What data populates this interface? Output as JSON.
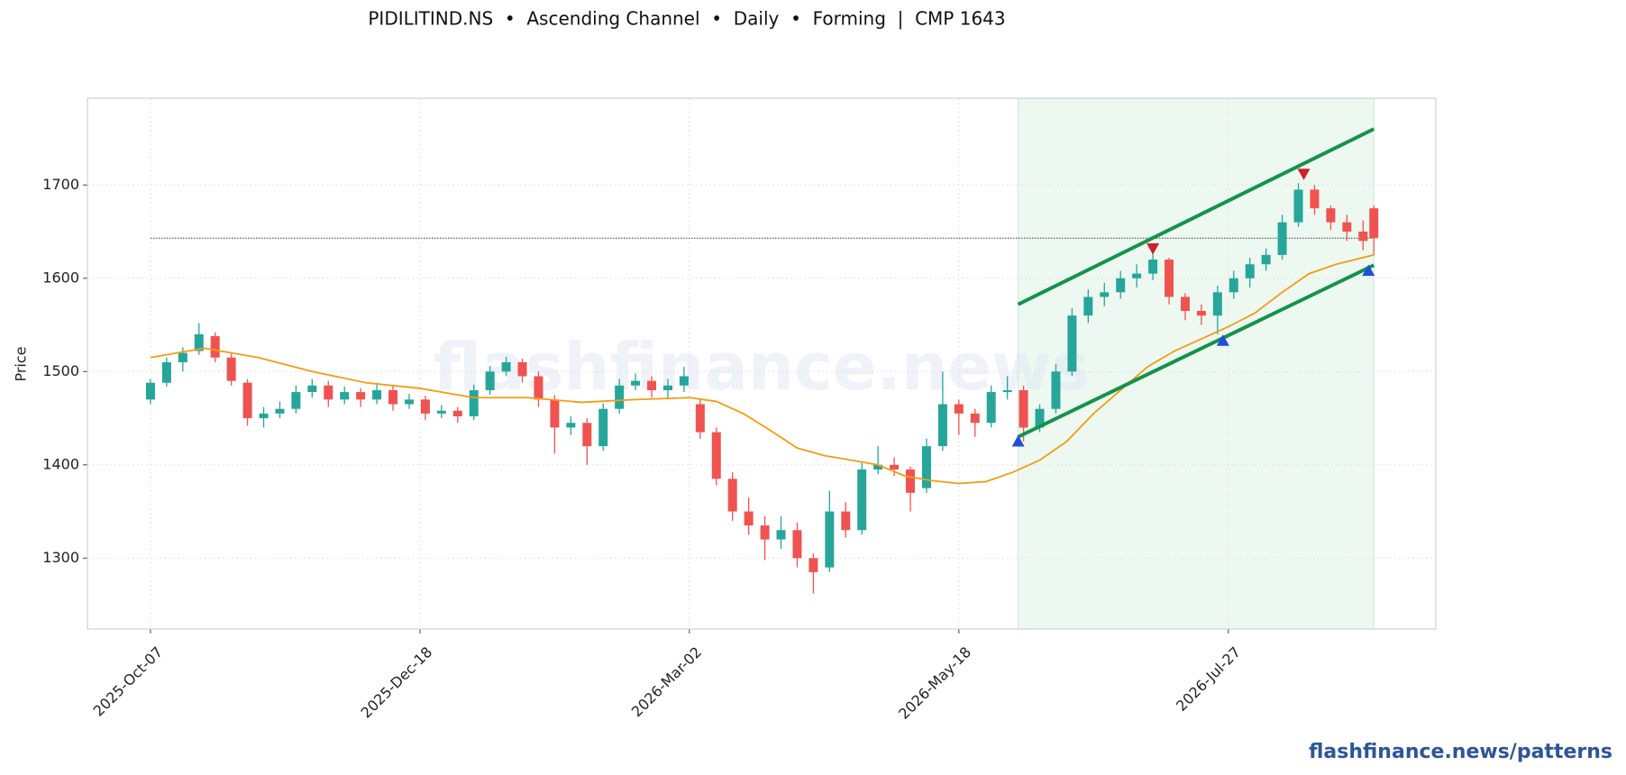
{
  "chart_data": {
    "type": "candlestick",
    "title": "PIDILITIND.NS  •  Ascending Channel  •  Daily  •  Forming  |  CMP 1643",
    "ylabel": "Price",
    "watermark": "flashfinance.news",
    "footer": "flashfinance.news/patterns",
    "xlim": [
      -11.7,
      238.5
    ],
    "xticks": [
      {
        "value": 0,
        "label": "2025-Oct-07"
      },
      {
        "value": 50,
        "label": "2025-Dec-18"
      },
      {
        "value": 100,
        "label": "2026-Mar-02"
      },
      {
        "value": 150,
        "label": "2026-May-18"
      },
      {
        "value": 200,
        "label": "2026-Jul-27"
      }
    ],
    "ylim": [
      1224,
      1793
    ],
    "yticks": [
      1300,
      1400,
      1500,
      1600,
      1700
    ],
    "grid": true,
    "up_color": "#26a69a",
    "down_color": "#ef5350",
    "x": [
      0,
      3,
      6,
      9,
      12,
      15,
      18,
      21,
      24,
      27,
      30,
      33,
      36,
      39,
      42,
      45,
      48,
      51,
      54,
      57,
      60,
      63,
      66,
      69,
      72,
      75,
      78,
      81,
      84,
      87,
      90,
      93,
      96,
      99,
      102,
      105,
      108,
      111,
      114,
      117,
      120,
      123,
      126,
      129,
      132,
      135,
      138,
      141,
      144,
      147,
      150,
      153,
      156,
      159,
      162,
      165,
      168,
      171,
      174,
      177,
      180,
      183,
      186,
      189,
      192,
      195,
      198,
      201,
      204,
      207,
      210,
      213,
      216,
      219,
      222,
      225,
      227
    ],
    "open": [
      1470,
      1488,
      1510,
      1522,
      1538,
      1515,
      1488,
      1450,
      1455,
      1460,
      1478,
      1485,
      1470,
      1478,
      1470,
      1480,
      1465,
      1470,
      1455,
      1458,
      1452,
      1480,
      1500,
      1510,
      1495,
      1470,
      1440,
      1445,
      1420,
      1460,
      1485,
      1490,
      1480,
      1485,
      1465,
      1435,
      1385,
      1350,
      1335,
      1320,
      1330,
      1300,
      1290,
      1350,
      1330,
      1395,
      1400,
      1395,
      1375,
      1420,
      1465,
      1455,
      1445,
      1478,
      1480,
      1440,
      1460,
      1500,
      1560,
      1580,
      1585,
      1600,
      1605,
      1620,
      1580,
      1565,
      1560,
      1585,
      1600,
      1615,
      1625,
      1660,
      1695,
      1675,
      1660,
      1650,
      1675
    ],
    "high": [
      1492,
      1515,
      1526,
      1552,
      1542,
      1520,
      1492,
      1462,
      1468,
      1485,
      1492,
      1490,
      1484,
      1482,
      1488,
      1485,
      1476,
      1474,
      1464,
      1462,
      1486,
      1506,
      1516,
      1514,
      1500,
      1475,
      1452,
      1450,
      1466,
      1492,
      1498,
      1495,
      1492,
      1505,
      1470,
      1440,
      1392,
      1365,
      1345,
      1345,
      1338,
      1305,
      1372,
      1360,
      1402,
      1420,
      1408,
      1398,
      1428,
      1500,
      1470,
      1460,
      1485,
      1495,
      1485,
      1465,
      1508,
      1568,
      1588,
      1595,
      1608,
      1615,
      1628,
      1622,
      1584,
      1572,
      1592,
      1608,
      1622,
      1632,
      1668,
      1702,
      1700,
      1678,
      1668,
      1662,
      1678
    ],
    "low": [
      1465,
      1484,
      1500,
      1518,
      1510,
      1485,
      1442,
      1440,
      1450,
      1455,
      1472,
      1462,
      1465,
      1462,
      1465,
      1458,
      1460,
      1448,
      1450,
      1445,
      1448,
      1475,
      1495,
      1488,
      1462,
      1412,
      1432,
      1400,
      1415,
      1455,
      1480,
      1472,
      1470,
      1478,
      1428,
      1378,
      1340,
      1325,
      1298,
      1310,
      1290,
      1262,
      1285,
      1322,
      1325,
      1390,
      1388,
      1350,
      1370,
      1415,
      1432,
      1430,
      1440,
      1470,
      1425,
      1435,
      1455,
      1495,
      1552,
      1570,
      1578,
      1590,
      1598,
      1572,
      1555,
      1550,
      1540,
      1578,
      1590,
      1608,
      1620,
      1655,
      1668,
      1652,
      1640,
      1630,
      1625
    ],
    "close": [
      1488,
      1510,
      1520,
      1540,
      1515,
      1490,
      1450,
      1455,
      1460,
      1478,
      1485,
      1470,
      1478,
      1470,
      1480,
      1465,
      1470,
      1455,
      1458,
      1452,
      1480,
      1500,
      1510,
      1495,
      1470,
      1440,
      1445,
      1420,
      1460,
      1485,
      1490,
      1480,
      1485,
      1495,
      1435,
      1385,
      1350,
      1335,
      1320,
      1330,
      1300,
      1285,
      1350,
      1330,
      1395,
      1400,
      1395,
      1370,
      1420,
      1465,
      1455,
      1445,
      1478,
      1480,
      1440,
      1460,
      1500,
      1560,
      1580,
      1585,
      1600,
      1605,
      1620,
      1580,
      1565,
      1560,
      1585,
      1600,
      1615,
      1625,
      1660,
      1695,
      1675,
      1660,
      1650,
      1640,
      1643
    ],
    "moving_average": {
      "color": "#f39c12",
      "x": [
        0,
        10,
        20,
        30,
        40,
        50,
        60,
        70,
        80,
        90,
        100,
        105,
        110,
        115,
        120,
        125,
        130,
        135,
        140,
        145,
        150,
        155,
        160,
        165,
        170,
        175,
        180,
        185,
        190,
        195,
        200,
        205,
        210,
        215,
        220,
        227
      ],
      "values": [
        1515,
        1525,
        1515,
        1500,
        1488,
        1482,
        1472,
        1472,
        1467,
        1470,
        1472,
        1468,
        1455,
        1437,
        1418,
        1410,
        1405,
        1400,
        1388,
        1383,
        1380,
        1382,
        1392,
        1405,
        1425,
        1455,
        1480,
        1505,
        1522,
        1535,
        1548,
        1563,
        1585,
        1605,
        1615,
        1625
      ]
    },
    "channel_color": "#15924a",
    "channel_upper": {
      "x": [
        161,
        227
      ],
      "values": [
        1572,
        1760
      ]
    },
    "channel_lower": {
      "x": [
        161,
        227
      ],
      "values": [
        1430,
        1614
      ]
    },
    "pivot_highs": {
      "color": "#d0202a",
      "x": [
        186,
        214
      ],
      "values": [
        1632,
        1712
      ]
    },
    "pivot_lows": {
      "color": "#1f4fd8",
      "x": [
        161,
        199,
        226
      ],
      "values": [
        1425,
        1533,
        1608
      ]
    },
    "cmp_line": {
      "x": [
        0,
        227
      ],
      "value": 1643
    },
    "pattern_zone": [
      161,
      227
    ]
  }
}
